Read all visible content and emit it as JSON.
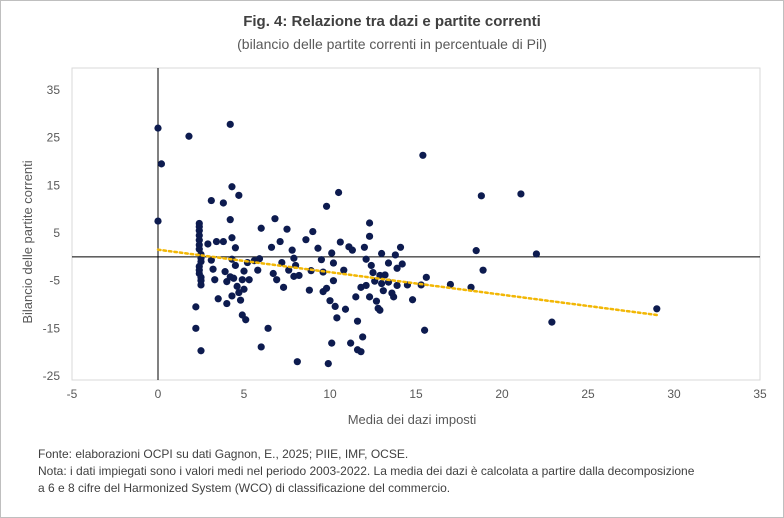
{
  "chart_data": {
    "type": "scatter",
    "title": "Fig. 4: Relazione tra dazi e partite correnti",
    "subtitle": "(bilancio delle partite correnti in percentuale di Pil)",
    "xlabel": "Media dei dazi imposti",
    "ylabel": "Bilancio delle partite correnti",
    "xlim": [
      -5,
      35
    ],
    "ylim": [
      -25,
      35
    ],
    "xticks": [
      "-5",
      "0",
      "5",
      "10",
      "15",
      "20",
      "25",
      "30",
      "35"
    ],
    "yticks": [
      "35",
      "25",
      "15",
      "5",
      "-5",
      "-15",
      "-25"
    ],
    "grid": "none",
    "colors": {
      "points": "#0d1b4f",
      "trend": "#f2b705",
      "zero_axes": "#000000"
    },
    "trendline": {
      "style": "dotted",
      "x": [
        0,
        29
      ],
      "y": [
        1.5,
        -12.2
      ]
    },
    "points": [
      {
        "x": 0.0,
        "y": 27.0
      },
      {
        "x": 0.0,
        "y": 7.5
      },
      {
        "x": 0.2,
        "y": 19.5
      },
      {
        "x": 1.8,
        "y": 25.3
      },
      {
        "x": 4.2,
        "y": 27.8
      },
      {
        "x": 4.3,
        "y": 14.7
      },
      {
        "x": 3.1,
        "y": 11.8
      },
      {
        "x": 3.8,
        "y": 11.3
      },
      {
        "x": 4.7,
        "y": 12.9
      },
      {
        "x": 2.4,
        "y": 7.0
      },
      {
        "x": 2.4,
        "y": 6.3
      },
      {
        "x": 2.4,
        "y": 5.5
      },
      {
        "x": 2.4,
        "y": 4.5
      },
      {
        "x": 2.4,
        "y": 3.5
      },
      {
        "x": 2.4,
        "y": 2.5
      },
      {
        "x": 2.4,
        "y": 1.6
      },
      {
        "x": 2.5,
        "y": 0.5
      },
      {
        "x": 2.5,
        "y": -0.3
      },
      {
        "x": 2.5,
        "y": -1.0
      },
      {
        "x": 2.4,
        "y": -2.0
      },
      {
        "x": 2.4,
        "y": -2.8
      },
      {
        "x": 2.4,
        "y": -3.5
      },
      {
        "x": 2.5,
        "y": -4.3
      },
      {
        "x": 2.5,
        "y": -5.0
      },
      {
        "x": 2.5,
        "y": -5.9
      },
      {
        "x": 2.2,
        "y": -10.5
      },
      {
        "x": 2.2,
        "y": -15.0
      },
      {
        "x": 2.5,
        "y": -19.7
      },
      {
        "x": 2.9,
        "y": 2.7
      },
      {
        "x": 3.1,
        "y": -0.7
      },
      {
        "x": 3.2,
        "y": -2.6
      },
      {
        "x": 3.3,
        "y": -4.8
      },
      {
        "x": 3.5,
        "y": -8.8
      },
      {
        "x": 3.4,
        "y": 3.2
      },
      {
        "x": 3.8,
        "y": 3.2
      },
      {
        "x": 3.9,
        "y": -3.1
      },
      {
        "x": 4.0,
        "y": -5.2
      },
      {
        "x": 4.2,
        "y": -4.2
      },
      {
        "x": 4.0,
        "y": -9.8
      },
      {
        "x": 4.3,
        "y": -8.2
      },
      {
        "x": 4.2,
        "y": 7.8
      },
      {
        "x": 4.3,
        "y": 4.0
      },
      {
        "x": 4.5,
        "y": 1.9
      },
      {
        "x": 4.3,
        "y": -0.5
      },
      {
        "x": 4.4,
        "y": -4.5
      },
      {
        "x": 4.6,
        "y": -6.2
      },
      {
        "x": 4.7,
        "y": -7.5
      },
      {
        "x": 4.8,
        "y": -9.1
      },
      {
        "x": 4.9,
        "y": -4.8
      },
      {
        "x": 5.0,
        "y": -3.0
      },
      {
        "x": 4.5,
        "y": -1.8
      },
      {
        "x": 4.9,
        "y": -12.2
      },
      {
        "x": 5.1,
        "y": -13.2
      },
      {
        "x": 5.0,
        "y": -6.8
      },
      {
        "x": 5.2,
        "y": -1.2
      },
      {
        "x": 5.3,
        "y": -4.8
      },
      {
        "x": 5.6,
        "y": -0.8
      },
      {
        "x": 5.8,
        "y": -2.8
      },
      {
        "x": 5.9,
        "y": -0.4
      },
      {
        "x": 6.0,
        "y": 6.0
      },
      {
        "x": 6.0,
        "y": -18.9
      },
      {
        "x": 6.4,
        "y": -15.0
      },
      {
        "x": 6.8,
        "y": 8.0
      },
      {
        "x": 6.6,
        "y": 2.0
      },
      {
        "x": 6.7,
        "y": -3.5
      },
      {
        "x": 6.9,
        "y": -4.8
      },
      {
        "x": 7.1,
        "y": 3.2
      },
      {
        "x": 7.2,
        "y": -1.2
      },
      {
        "x": 7.3,
        "y": -6.4
      },
      {
        "x": 7.5,
        "y": 5.8
      },
      {
        "x": 7.6,
        "y": -2.8
      },
      {
        "x": 7.8,
        "y": 1.4
      },
      {
        "x": 7.9,
        "y": -0.3
      },
      {
        "x": 8.0,
        "y": -1.8
      },
      {
        "x": 7.9,
        "y": -4.1
      },
      {
        "x": 8.2,
        "y": -3.9
      },
      {
        "x": 8.1,
        "y": -22.0
      },
      {
        "x": 8.6,
        "y": 3.6
      },
      {
        "x": 8.9,
        "y": -2.9
      },
      {
        "x": 8.8,
        "y": -7.0
      },
      {
        "x": 9.0,
        "y": 5.3
      },
      {
        "x": 9.3,
        "y": 1.8
      },
      {
        "x": 9.5,
        "y": -0.6
      },
      {
        "x": 9.6,
        "y": -3.2
      },
      {
        "x": 9.6,
        "y": -7.3
      },
      {
        "x": 9.8,
        "y": -6.6
      },
      {
        "x": 9.8,
        "y": 10.6
      },
      {
        "x": 9.9,
        "y": -22.4
      },
      {
        "x": 10.1,
        "y": 0.8
      },
      {
        "x": 10.2,
        "y": -1.3
      },
      {
        "x": 10.2,
        "y": -5.0
      },
      {
        "x": 10.0,
        "y": -9.2
      },
      {
        "x": 10.3,
        "y": -10.4
      },
      {
        "x": 10.4,
        "y": -12.8
      },
      {
        "x": 10.1,
        "y": -18.1
      },
      {
        "x": 10.5,
        "y": 13.5
      },
      {
        "x": 10.6,
        "y": 3.1
      },
      {
        "x": 10.8,
        "y": -2.8
      },
      {
        "x": 10.9,
        "y": -11.0
      },
      {
        "x": 11.1,
        "y": 2.1
      },
      {
        "x": 11.3,
        "y": 1.4
      },
      {
        "x": 11.2,
        "y": -18.1
      },
      {
        "x": 11.5,
        "y": -8.4
      },
      {
        "x": 11.6,
        "y": -13.5
      },
      {
        "x": 11.6,
        "y": -19.5
      },
      {
        "x": 11.8,
        "y": -6.4
      },
      {
        "x": 11.9,
        "y": -16.8
      },
      {
        "x": 11.8,
        "y": -19.9
      },
      {
        "x": 12.0,
        "y": 2.0
      },
      {
        "x": 12.1,
        "y": -0.5
      },
      {
        "x": 12.1,
        "y": -6.0
      },
      {
        "x": 12.3,
        "y": -8.4
      },
      {
        "x": 12.3,
        "y": 7.1
      },
      {
        "x": 12.3,
        "y": 4.3
      },
      {
        "x": 12.4,
        "y": -1.8
      },
      {
        "x": 12.5,
        "y": -3.3
      },
      {
        "x": 12.6,
        "y": -5.1
      },
      {
        "x": 12.7,
        "y": -9.3
      },
      {
        "x": 12.8,
        "y": -10.8
      },
      {
        "x": 12.9,
        "y": -3.9
      },
      {
        "x": 12.9,
        "y": -11.2
      },
      {
        "x": 13.0,
        "y": 0.7
      },
      {
        "x": 13.0,
        "y": -5.6
      },
      {
        "x": 13.1,
        "y": -7.1
      },
      {
        "x": 13.2,
        "y": -3.8
      },
      {
        "x": 13.4,
        "y": -1.3
      },
      {
        "x": 13.4,
        "y": -5.3
      },
      {
        "x": 13.6,
        "y": -7.6
      },
      {
        "x": 13.7,
        "y": -8.4
      },
      {
        "x": 13.8,
        "y": 0.4
      },
      {
        "x": 13.9,
        "y": -2.4
      },
      {
        "x": 13.9,
        "y": -6.0
      },
      {
        "x": 14.1,
        "y": 2.0
      },
      {
        "x": 14.2,
        "y": -1.5
      },
      {
        "x": 14.5,
        "y": -5.9
      },
      {
        "x": 14.8,
        "y": -9.0
      },
      {
        "x": 15.4,
        "y": 21.3
      },
      {
        "x": 15.3,
        "y": -5.9
      },
      {
        "x": 15.6,
        "y": -4.3
      },
      {
        "x": 15.5,
        "y": -15.4
      },
      {
        "x": 17.0,
        "y": -5.8
      },
      {
        "x": 18.2,
        "y": -6.4
      },
      {
        "x": 18.5,
        "y": 1.3
      },
      {
        "x": 18.8,
        "y": 12.8
      },
      {
        "x": 18.9,
        "y": -2.8
      },
      {
        "x": 21.1,
        "y": 13.2
      },
      {
        "x": 22.0,
        "y": 0.6
      },
      {
        "x": 22.9,
        "y": -13.7
      },
      {
        "x": 29.0,
        "y": -10.9
      }
    ]
  },
  "notes": {
    "source": "Fonte: elaborazioni OCPI su dati Gagnon, E., 2025; PIIE, IMF, OCSE.",
    "note_line1": "Nota: i dati impiegati sono i valori medi nel periodo 2003-2022. La media dei dazi è calcolata a partire dalla decomposizione",
    "note_line2": "a 6 e 8 cifre del Harmonized System (WCO) di classificazione del commercio."
  }
}
